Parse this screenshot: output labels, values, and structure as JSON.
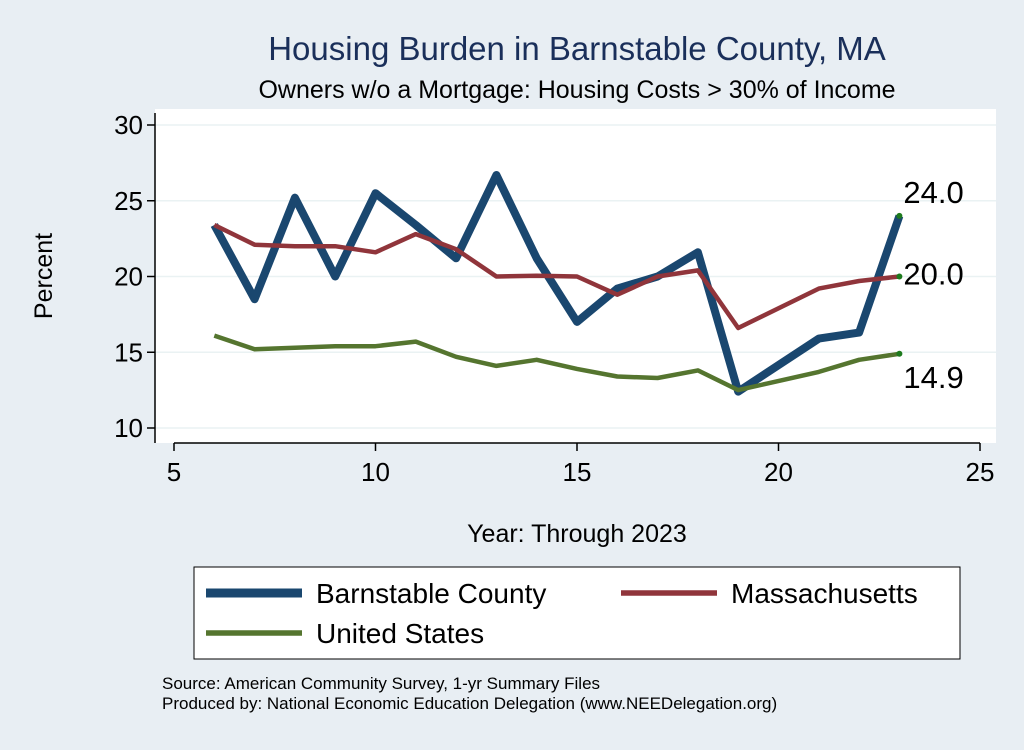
{
  "chart_data": {
    "type": "line",
    "title": "Housing Burden in Barnstable County, MA",
    "subtitle": "Owners w/o a Mortgage: Housing Costs > 30% of Income",
    "xlabel": "Year: Through 2023",
    "ylabel": "Percent",
    "xlim": [
      5,
      25
    ],
    "ylim": [
      10,
      30
    ],
    "xticks": [
      5,
      10,
      15,
      20,
      25
    ],
    "yticks": [
      10,
      15,
      20,
      25,
      30
    ],
    "grid": true,
    "legend_position": "bottom",
    "series": [
      {
        "name": "Barnstable County",
        "color": "#1a476f",
        "x": [
          6,
          7,
          8,
          9,
          10,
          11,
          12,
          13,
          14,
          15,
          16,
          17,
          18,
          19,
          21,
          22,
          23
        ],
        "values": [
          23.4,
          18.5,
          25.2,
          20.0,
          25.5,
          23.4,
          21.2,
          26.7,
          21.2,
          17.0,
          19.2,
          20.0,
          21.6,
          12.4,
          15.9,
          16.3,
          24.0
        ],
        "end_label": "24.0"
      },
      {
        "name": "Massachusetts",
        "color": "#90353b",
        "x": [
          6,
          7,
          8,
          9,
          10,
          11,
          12,
          13,
          14,
          15,
          16,
          17,
          18,
          19,
          21,
          22,
          23
        ],
        "values": [
          23.4,
          22.1,
          22.0,
          22.0,
          21.6,
          22.8,
          21.8,
          20.0,
          20.05,
          20.0,
          18.8,
          20.0,
          20.4,
          16.6,
          19.2,
          19.7,
          20.0
        ],
        "end_label": "20.0"
      },
      {
        "name": "United States",
        "color": "#55752f",
        "x": [
          6,
          7,
          8,
          9,
          10,
          11,
          12,
          13,
          14,
          15,
          16,
          17,
          18,
          19,
          21,
          22,
          23
        ],
        "values": [
          16.1,
          15.2,
          15.3,
          15.4,
          15.4,
          15.7,
          14.7,
          14.1,
          14.5,
          13.9,
          13.4,
          13.3,
          13.8,
          12.5,
          13.7,
          14.5,
          14.9
        ],
        "end_label": "14.9"
      }
    ]
  },
  "source_note": "Source: American Community Survey, 1-yr Summary Files",
  "producer_note": "Produced by: National Economic Education Delegation (www.NEEDelegation.org)"
}
